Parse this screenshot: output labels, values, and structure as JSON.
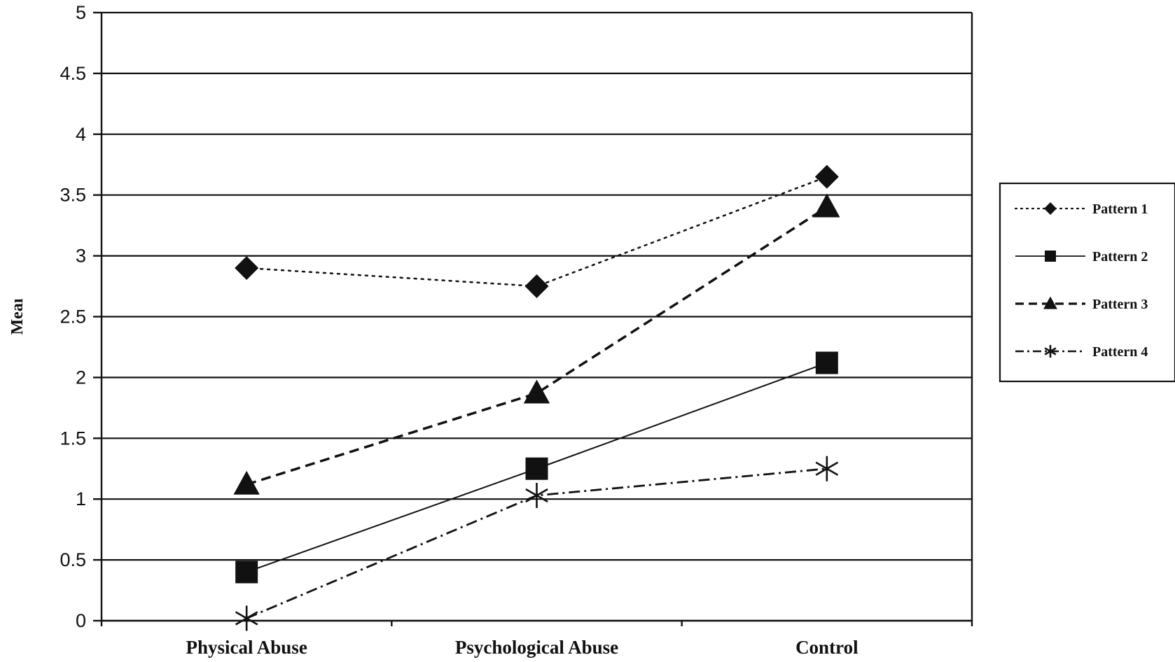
{
  "chart_data": {
    "type": "line",
    "ylabel": "Meaı",
    "ylim": [
      0,
      5
    ],
    "y_ticks": [
      "0",
      "0.5",
      "1",
      "1.5",
      "2",
      "2.5",
      "3",
      "3.5",
      "4",
      "4.5",
      "5"
    ],
    "categories": [
      "Physical Abuse",
      "Psychological Abuse",
      "Control"
    ],
    "grid": true,
    "legend_position": "right",
    "series": [
      {
        "name": "Pattern 1",
        "values": [
          2.9,
          2.75,
          3.65
        ],
        "marker": "diamond",
        "line_style": "dotted",
        "color": "#111111"
      },
      {
        "name": "Pattern 2",
        "values": [
          0.4,
          1.25,
          2.12
        ],
        "marker": "square",
        "line_style": "solid",
        "color": "#111111"
      },
      {
        "name": "Pattern 3",
        "values": [
          1.12,
          1.87,
          3.4
        ],
        "marker": "triangle",
        "line_style": "dashed",
        "color": "#111111"
      },
      {
        "name": "Pattern 4",
        "values": [
          0.02,
          1.03,
          1.25
        ],
        "marker": "asterisk",
        "line_style": "dash-dot",
        "color": "#111111"
      }
    ]
  }
}
